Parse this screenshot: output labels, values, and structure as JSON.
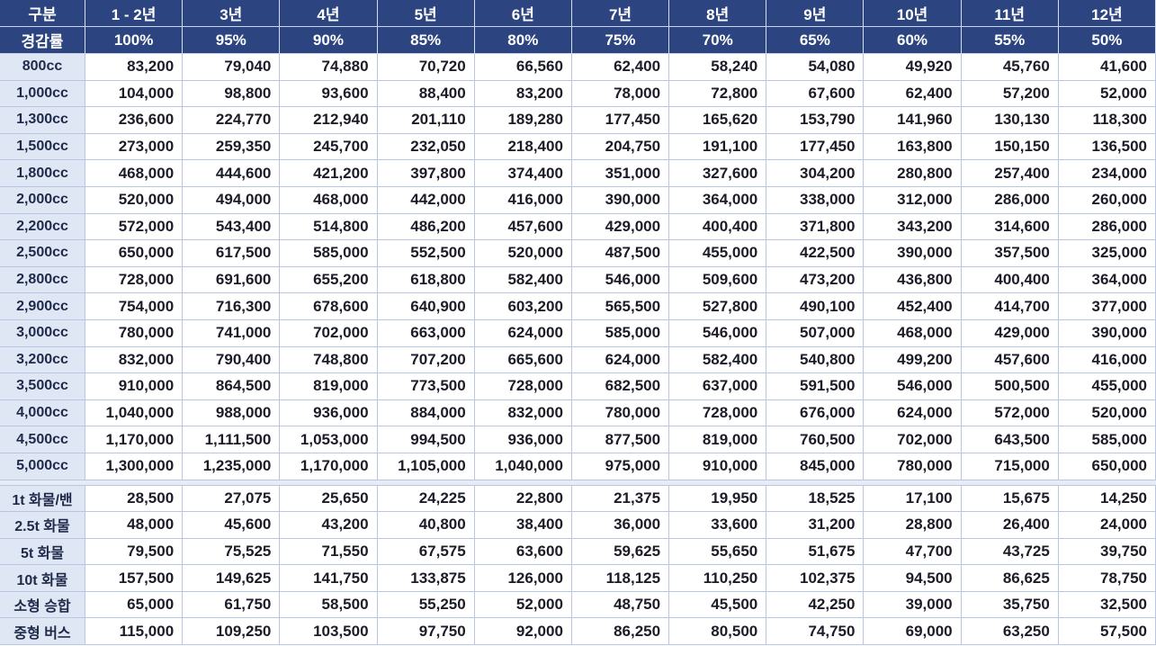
{
  "table": {
    "header": [
      "구분",
      "1 - 2년",
      "3년",
      "4년",
      "5년",
      "6년",
      "7년",
      "8년",
      "9년",
      "10년",
      "11년",
      "12년"
    ],
    "rate_row": [
      "경감률",
      "100%",
      "95%",
      "90%",
      "85%",
      "80%",
      "75%",
      "70%",
      "65%",
      "60%",
      "55%",
      "50%"
    ],
    "sections": [
      {
        "rows": [
          [
            "800cc",
            "83,200",
            "79,040",
            "74,880",
            "70,720",
            "66,560",
            "62,400",
            "58,240",
            "54,080",
            "49,920",
            "45,760",
            "41,600"
          ],
          [
            "1,000cc",
            "104,000",
            "98,800",
            "93,600",
            "88,400",
            "83,200",
            "78,000",
            "72,800",
            "67,600",
            "62,400",
            "57,200",
            "52,000"
          ],
          [
            "1,300cc",
            "236,600",
            "224,770",
            "212,940",
            "201,110",
            "189,280",
            "177,450",
            "165,620",
            "153,790",
            "141,960",
            "130,130",
            "118,300"
          ],
          [
            "1,500cc",
            "273,000",
            "259,350",
            "245,700",
            "232,050",
            "218,400",
            "204,750",
            "191,100",
            "177,450",
            "163,800",
            "150,150",
            "136,500"
          ],
          [
            "1,800cc",
            "468,000",
            "444,600",
            "421,200",
            "397,800",
            "374,400",
            "351,000",
            "327,600",
            "304,200",
            "280,800",
            "257,400",
            "234,000"
          ],
          [
            "2,000cc",
            "520,000",
            "494,000",
            "468,000",
            "442,000",
            "416,000",
            "390,000",
            "364,000",
            "338,000",
            "312,000",
            "286,000",
            "260,000"
          ],
          [
            "2,200cc",
            "572,000",
            "543,400",
            "514,800",
            "486,200",
            "457,600",
            "429,000",
            "400,400",
            "371,800",
            "343,200",
            "314,600",
            "286,000"
          ],
          [
            "2,500cc",
            "650,000",
            "617,500",
            "585,000",
            "552,500",
            "520,000",
            "487,500",
            "455,000",
            "422,500",
            "390,000",
            "357,500",
            "325,000"
          ],
          [
            "2,800cc",
            "728,000",
            "691,600",
            "655,200",
            "618,800",
            "582,400",
            "546,000",
            "509,600",
            "473,200",
            "436,800",
            "400,400",
            "364,000"
          ],
          [
            "2,900cc",
            "754,000",
            "716,300",
            "678,600",
            "640,900",
            "603,200",
            "565,500",
            "527,800",
            "490,100",
            "452,400",
            "414,700",
            "377,000"
          ],
          [
            "3,000cc",
            "780,000",
            "741,000",
            "702,000",
            "663,000",
            "624,000",
            "585,000",
            "546,000",
            "507,000",
            "468,000",
            "429,000",
            "390,000"
          ],
          [
            "3,200cc",
            "832,000",
            "790,400",
            "748,800",
            "707,200",
            "665,600",
            "624,000",
            "582,400",
            "540,800",
            "499,200",
            "457,600",
            "416,000"
          ],
          [
            "3,500cc",
            "910,000",
            "864,500",
            "819,000",
            "773,500",
            "728,000",
            "682,500",
            "637,000",
            "591,500",
            "546,000",
            "500,500",
            "455,000"
          ],
          [
            "4,000cc",
            "1,040,000",
            "988,000",
            "936,000",
            "884,000",
            "832,000",
            "780,000",
            "728,000",
            "676,000",
            "624,000",
            "572,000",
            "520,000"
          ],
          [
            "4,500cc",
            "1,170,000",
            "1,111,500",
            "1,053,000",
            "994,500",
            "936,000",
            "877,500",
            "819,000",
            "760,500",
            "702,000",
            "643,500",
            "585,000"
          ],
          [
            "5,000cc",
            "1,300,000",
            "1,235,000",
            "1,170,000",
            "1,105,000",
            "1,040,000",
            "975,000",
            "910,000",
            "845,000",
            "780,000",
            "715,000",
            "650,000"
          ]
        ]
      },
      {
        "rows": [
          [
            "1t 화물/밴",
            "28,500",
            "27,075",
            "25,650",
            "24,225",
            "22,800",
            "21,375",
            "19,950",
            "18,525",
            "17,100",
            "15,675",
            "14,250"
          ],
          [
            "2.5t 화물",
            "48,000",
            "45,600",
            "43,200",
            "40,800",
            "38,400",
            "36,000",
            "33,600",
            "31,200",
            "28,800",
            "26,400",
            "24,000"
          ],
          [
            "5t 화물",
            "79,500",
            "75,525",
            "71,550",
            "67,575",
            "63,600",
            "59,625",
            "55,650",
            "51,675",
            "47,700",
            "43,725",
            "39,750"
          ],
          [
            "10t 화물",
            "157,500",
            "149,625",
            "141,750",
            "133,875",
            "126,000",
            "118,125",
            "110,250",
            "102,375",
            "94,500",
            "86,625",
            "78,750"
          ],
          [
            "소형 승합",
            "65,000",
            "61,750",
            "58,500",
            "55,250",
            "52,000",
            "48,750",
            "45,500",
            "42,250",
            "39,000",
            "35,750",
            "32,500"
          ],
          [
            "중형 버스",
            "115,000",
            "109,250",
            "103,500",
            "97,750",
            "92,000",
            "86,250",
            "80,500",
            "74,750",
            "69,000",
            "63,250",
            "57,500"
          ]
        ]
      }
    ]
  }
}
